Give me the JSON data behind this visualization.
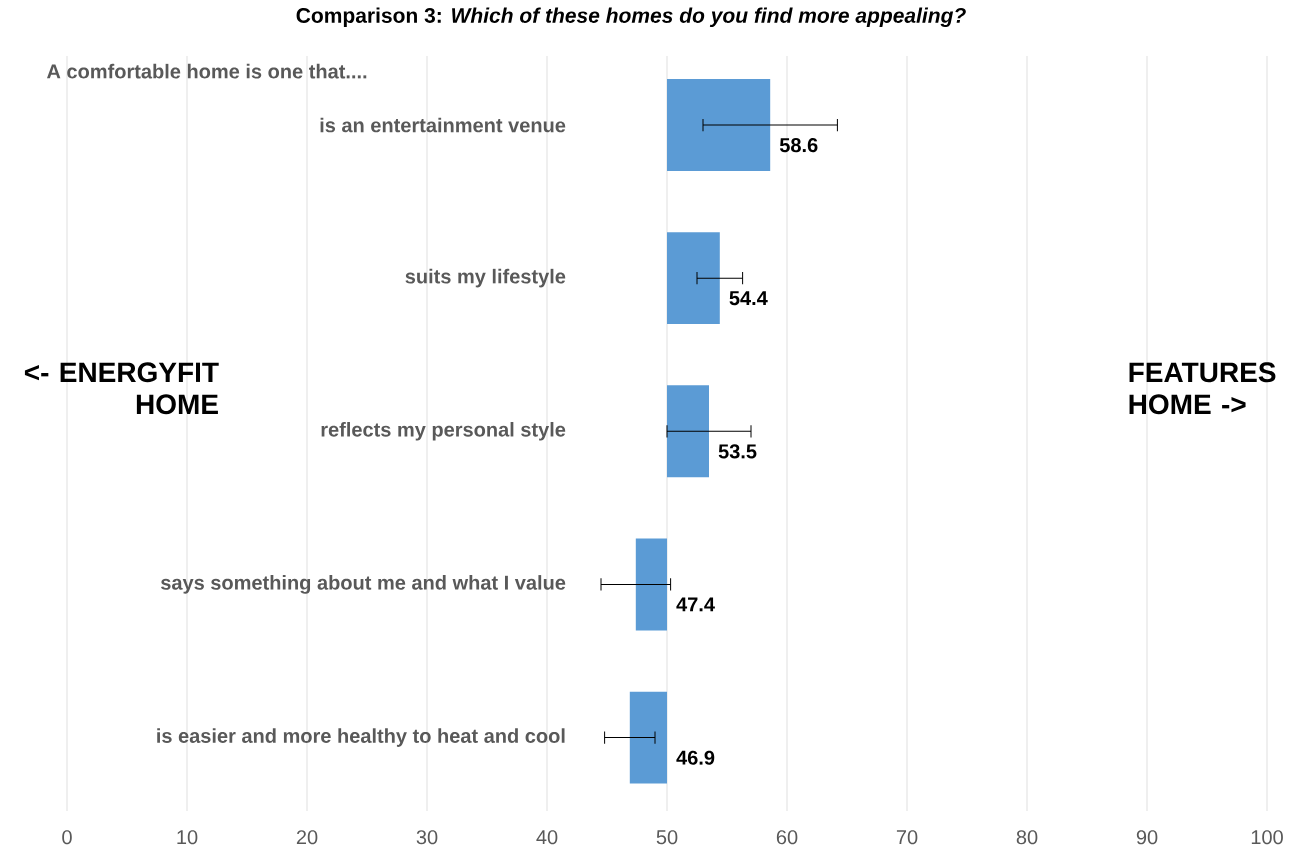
{
  "chart_data": {
    "type": "bar",
    "orientation": "horizontal",
    "title": "Comparison 3: *Which of these homes do you find more appealing?*",
    "categories": [
      "is an entertainment venue",
      "suits my lifestyle",
      "reflects my personal style",
      "says something about me and what I value",
      "is easier and more healthy to heat and cool"
    ],
    "base": [
      50,
      50,
      50,
      50,
      50
    ],
    "values": [
      8.6,
      4.4,
      3.5,
      -2.6,
      -3.1
    ],
    "value_labels": [
      "58.6",
      "54.4",
      "53.5",
      "47.4",
      "46.9"
    ],
    "errors": [
      5.6,
      1.9,
      3.5,
      2.9,
      2.1
    ],
    "color": "#5b9bd5",
    "xlim": [
      0,
      100
    ],
    "xticks": [
      0,
      10,
      20,
      30,
      40,
      50,
      60,
      70,
      80,
      90,
      100
    ],
    "grid": "x",
    "annotations": [
      "A comfortable home is one that....",
      "<- ENERGYFIT HOME",
      "FEATURES HOME ->"
    ]
  }
}
